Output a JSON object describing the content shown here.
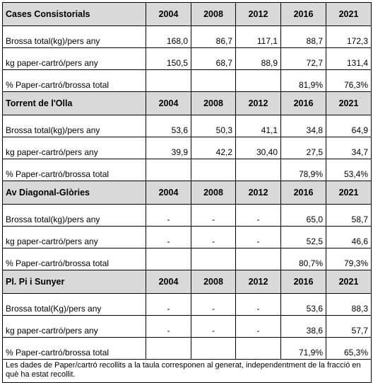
{
  "sections": [
    {
      "title": "Cases Consistorials",
      "years": [
        "2004",
        "2008",
        "2012",
        "2016",
        "2021"
      ],
      "rows": [
        {
          "label": "Brossa total(kg)/pers any",
          "cells": [
            "168,0",
            "86,7",
            "117,1",
            "88,7",
            "172,3"
          ]
        },
        {
          "label": "kg paper-cartró/pers any",
          "cells": [
            "150,5",
            "68,7",
            "88,9",
            "72,7",
            "131,4"
          ]
        },
        {
          "label": "% Paper-cartró/brossa total",
          "cells": [
            null,
            null,
            null,
            "81,9%",
            "76,3%"
          ]
        }
      ]
    },
    {
      "title": "Torrent de l'Olla",
      "years": [
        "2004",
        "2008",
        "2012",
        "2016",
        "2021"
      ],
      "rows": [
        {
          "label": "Brossa total(kg)/pers any",
          "cells": [
            "53,6",
            "50,3",
            "41,1",
            "34,8",
            "64,9"
          ]
        },
        {
          "label": "kg paper-cartró/pers any",
          "cells": [
            "39,9",
            "42,2",
            "30,40",
            "27,5",
            "34,7"
          ]
        },
        {
          "label": "% Paper-cartró/brossa total",
          "cells": [
            null,
            null,
            null,
            "78,9%",
            "53,4%"
          ]
        }
      ]
    },
    {
      "title": "Av Diagonal-Glòries",
      "years": [
        "2004",
        "2008",
        "2012",
        "2016",
        "2021"
      ],
      "rows": [
        {
          "label": "Brossa total(kg)/pers any",
          "cells": [
            "-",
            "-",
            "-",
            "65,0",
            "58,7"
          ]
        },
        {
          "label": "kg paper-cartró/pers any",
          "cells": [
            "-",
            "-",
            "-",
            "52,5",
            "46,6"
          ]
        },
        {
          "label": "% Paper-cartró/brossa total",
          "cells": [
            null,
            null,
            null,
            "80,7%",
            "79,3%"
          ]
        }
      ]
    },
    {
      "title": "Pl. Pi i Sunyer",
      "years": [
        "2004",
        "2008",
        "2012",
        "2016",
        "2021"
      ],
      "rows": [
        {
          "label": "Brossa total(Kg)/pers any",
          "cells": [
            "-",
            "-",
            "-",
            "53,6",
            "88,3"
          ]
        },
        {
          "label": "kg paper-cartró/pers any",
          "cells": [
            "-",
            "-",
            "-",
            "38,6",
            "57,7"
          ]
        },
        {
          "label": "% Paper-cartró/brossa total",
          "cells": [
            null,
            null,
            null,
            "71,9%",
            "65,3%"
          ]
        }
      ]
    }
  ],
  "note": "Les dades de Paper/cartró recollits a la taula corresponen al generat, independentment de la fracció en què ha estat recollit."
}
